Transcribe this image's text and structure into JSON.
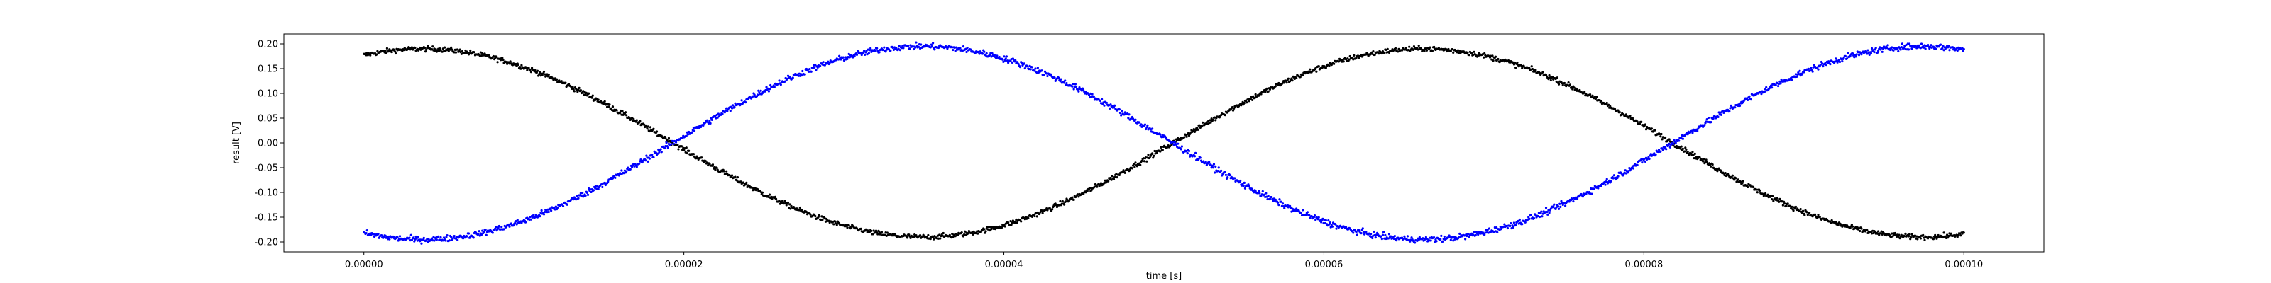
{
  "chart_data": {
    "type": "scatter",
    "title": "",
    "xlabel": "time [s]",
    "ylabel": "result [V]",
    "xlim": [
      -5e-06,
      0.000105
    ],
    "ylim": [
      -0.22,
      0.22
    ],
    "x_ticks": [
      "0.00000",
      "0.00002",
      "0.00004",
      "0.00006",
      "0.00008",
      "0.00010"
    ],
    "y_ticks": [
      "-0.20",
      "-0.15",
      "-0.10",
      "-0.05",
      "0.00",
      "0.05",
      "0.10",
      "0.15",
      "0.20"
    ],
    "grid": false,
    "legend": "none",
    "x_range": [
      0,
      0.0001
    ],
    "points_per_series": 2000,
    "series": [
      {
        "color": "#000000",
        "amplitude": 0.19,
        "period_s": 6.25e-05,
        "phase_rad": 1.2,
        "noise": 0.0025
      },
      {
        "color": "#0000ff",
        "amplitude": 0.195,
        "period_s": 6.25e-05,
        "phase_rad": -1.94,
        "noise": 0.003
      }
    ]
  }
}
